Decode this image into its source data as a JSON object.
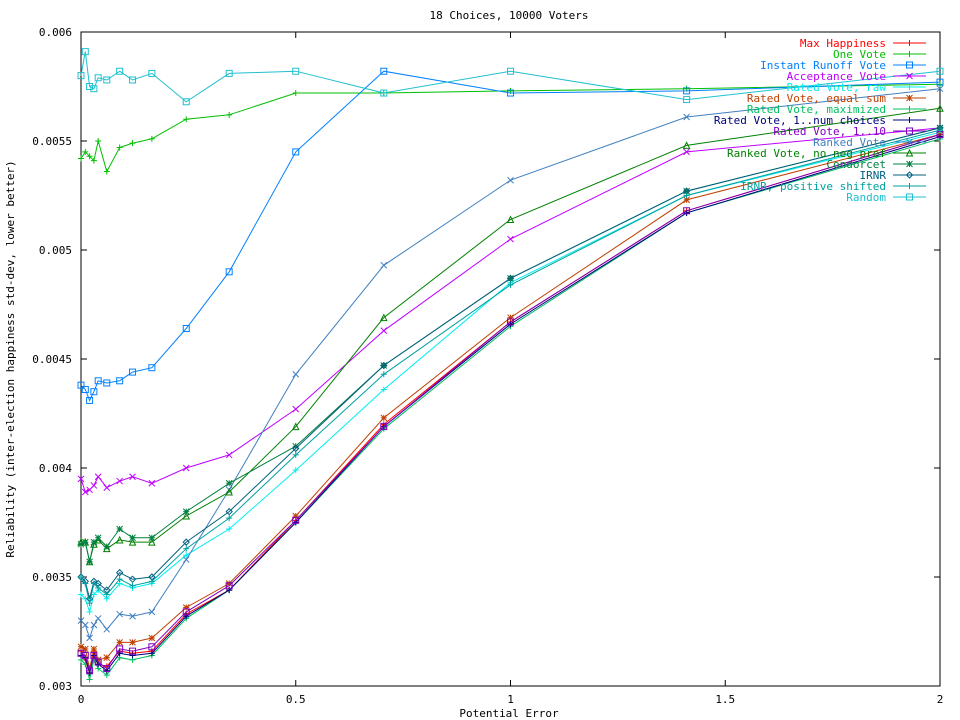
{
  "chart_data": {
    "type": "line",
    "title": "18 Choices, 10000 Voters",
    "xlabel": "Potential Error",
    "ylabel": "Reliability (inter-election happiness std-dev, lower better)",
    "xlim": [
      0,
      2
    ],
    "ylim": [
      0.003,
      0.006
    ],
    "xticks": [
      "0",
      "0.5",
      "1",
      "1.5",
      "2"
    ],
    "yticks": [
      "0.003",
      "0.0035",
      "0.004",
      "0.0045",
      "0.005",
      "0.0055",
      "0.006"
    ],
    "grid": false,
    "legend_position": "top-right",
    "x": [
      0,
      0.01,
      0.02,
      0.03,
      0.04,
      0.06,
      0.09,
      0.12,
      0.165,
      0.245,
      0.345,
      0.5,
      0.705,
      1.0,
      1.41,
      2.0
    ],
    "series": [
      {
        "name": "Max Happiness",
        "color": "#ff0000",
        "marker": "plus",
        "values": [
          0.00316,
          0.00312,
          0.00306,
          0.00316,
          0.0031,
          0.00309,
          0.00316,
          0.00315,
          0.00316,
          0.00333,
          0.00344,
          0.00376,
          0.0042,
          0.00467,
          0.00518,
          0.00553
        ]
      },
      {
        "name": "One Vote",
        "color": "#00c000",
        "marker": "plus",
        "values": [
          0.00542,
          0.00545,
          0.00543,
          0.00541,
          0.0055,
          0.00536,
          0.00547,
          0.00549,
          0.00551,
          0.0056,
          0.00562,
          0.00572,
          0.00572,
          0.00573,
          0.00574,
          0.00576
        ]
      },
      {
        "name": "Instant Runoff Vote",
        "color": "#0080ff",
        "marker": "square",
        "values": [
          0.00438,
          0.00436,
          0.00431,
          0.00435,
          0.0044,
          0.00439,
          0.0044,
          0.00444,
          0.00446,
          0.00464,
          0.0049,
          0.00545,
          0.00582,
          0.00572,
          0.00573,
          0.00577
        ]
      },
      {
        "name": "Acceptance Vote",
        "color": "#c000ff",
        "marker": "x",
        "values": [
          0.00395,
          0.00389,
          0.0039,
          0.00392,
          0.00396,
          0.00391,
          0.00394,
          0.00396,
          0.00393,
          0.004,
          0.00406,
          0.00427,
          0.00463,
          0.00505,
          0.00545,
          0.00556
        ]
      },
      {
        "name": "Rated Vote, raw",
        "color": "#00eeee",
        "marker": "plus",
        "values": [
          0.00342,
          0.0034,
          0.00334,
          0.00342,
          0.00344,
          0.0034,
          0.00347,
          0.00345,
          0.00347,
          0.0036,
          0.00372,
          0.00399,
          0.00436,
          0.00485,
          0.00525,
          0.00554
        ]
      },
      {
        "name": "Rated Vote, equal sum",
        "color": "#c04000",
        "marker": "star",
        "values": [
          0.00318,
          0.00317,
          0.00308,
          0.00317,
          0.00312,
          0.00313,
          0.0032,
          0.0032,
          0.00322,
          0.00336,
          0.00347,
          0.00378,
          0.00423,
          0.00469,
          0.00523,
          0.00553
        ]
      },
      {
        "name": "Rated Vote, maximized",
        "color": "#00c060",
        "marker": "plus",
        "values": [
          0.00312,
          0.0031,
          0.00303,
          0.00312,
          0.00308,
          0.00305,
          0.00313,
          0.00312,
          0.00314,
          0.00331,
          0.00344,
          0.00375,
          0.00418,
          0.00465,
          0.00517,
          0.00551
        ]
      },
      {
        "name": "Rated Vote, 1..num choices",
        "color": "#000080",
        "marker": "plus",
        "values": [
          0.00314,
          0.00313,
          0.00306,
          0.00314,
          0.0031,
          0.00307,
          0.00315,
          0.00314,
          0.00315,
          0.00332,
          0.00344,
          0.00375,
          0.00419,
          0.00466,
          0.00517,
          0.00552
        ]
      },
      {
        "name": "Rated Vote, 1..10",
        "color": "#8000c0",
        "marker": "square",
        "values": [
          0.00315,
          0.00314,
          0.00307,
          0.00314,
          0.00311,
          0.00308,
          0.00317,
          0.00316,
          0.00318,
          0.00334,
          0.00346,
          0.00376,
          0.00419,
          0.00467,
          0.00518,
          0.00553
        ]
      },
      {
        "name": "Ranked Vote",
        "color": "#4080c0",
        "marker": "x",
        "values": [
          0.0033,
          0.00328,
          0.00322,
          0.00328,
          0.00331,
          0.00326,
          0.00333,
          0.00332,
          0.00334,
          0.00358,
          0.0039,
          0.00443,
          0.00493,
          0.00532,
          0.00561,
          0.00574
        ]
      },
      {
        "name": "Ranked Vote, no neg pref",
        "color": "#008000",
        "marker": "triangle",
        "values": [
          0.00366,
          0.00366,
          0.00357,
          0.00365,
          0.00367,
          0.00363,
          0.00367,
          0.00366,
          0.00366,
          0.00378,
          0.00389,
          0.00419,
          0.00469,
          0.00514,
          0.00548,
          0.00565
        ]
      },
      {
        "name": "Condorcet",
        "color": "#008040",
        "marker": "star",
        "values": [
          0.00365,
          0.00366,
          0.00357,
          0.00366,
          0.00368,
          0.00364,
          0.00372,
          0.00368,
          0.00368,
          0.0038,
          0.00393,
          0.0041,
          0.00447,
          0.00487,
          0.00527,
          0.00556
        ]
      },
      {
        "name": "IRNR",
        "color": "#006080",
        "marker": "diamond",
        "values": [
          0.0035,
          0.00348,
          0.0034,
          0.00348,
          0.00347,
          0.00344,
          0.00352,
          0.00349,
          0.0035,
          0.00366,
          0.0038,
          0.00409,
          0.00447,
          0.00487,
          0.00527,
          0.00556
        ]
      },
      {
        "name": "IRNR, positive shifted",
        "color": "#00a0a0",
        "marker": "plus",
        "values": [
          0.0035,
          0.00347,
          0.00338,
          0.00347,
          0.00345,
          0.00342,
          0.00349,
          0.00346,
          0.00348,
          0.00363,
          0.00377,
          0.00406,
          0.00443,
          0.00484,
          0.00525,
          0.00555
        ]
      },
      {
        "name": "Random",
        "color": "#20c0d0",
        "marker": "square",
        "values": [
          0.0058,
          0.00591,
          0.00575,
          0.00574,
          0.00579,
          0.00578,
          0.00582,
          0.00578,
          0.00581,
          0.00568,
          0.00581,
          0.00582,
          0.00572,
          0.00582,
          0.00569,
          0.00582
        ]
      }
    ]
  }
}
